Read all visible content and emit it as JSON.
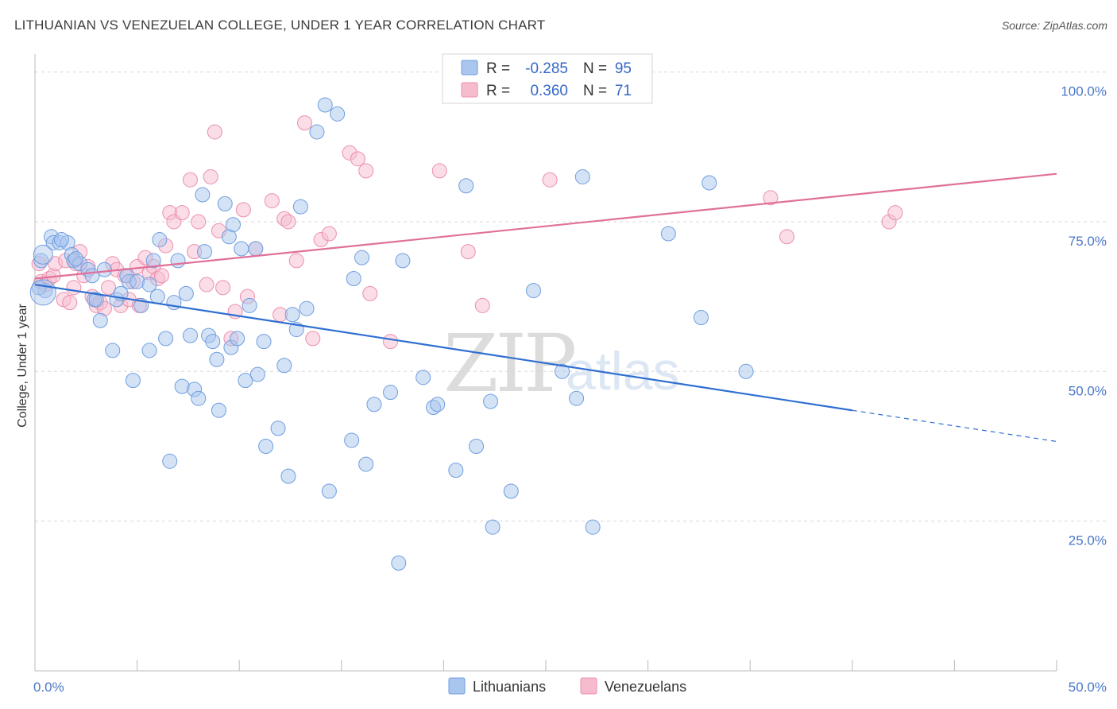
{
  "header": {
    "title": "LITHUANIAN VS VENEZUELAN COLLEGE, UNDER 1 YEAR CORRELATION CHART",
    "source": "Source: ZipAtlas.com"
  },
  "watermark": {
    "zip": "ZIP",
    "atlas": "atlas"
  },
  "legend": {
    "rows": [
      {
        "r_label": "R =",
        "r_value": "-0.285",
        "n_label": "N =",
        "n_value": "95"
      },
      {
        "r_label": "R =",
        "r_value": "0.360",
        "n_label": "N =",
        "n_value": "71"
      }
    ]
  },
  "bottom_legend": [
    {
      "label": "Lithuanians"
    },
    {
      "label": "Venezuelans"
    }
  ],
  "colors": {
    "blue_fill": "#a9c6ee",
    "blue_stroke": "#6f9ee0",
    "blue_line": "#2f6fd1",
    "pink_fill": "#f6bccd",
    "pink_stroke": "#ec8fad",
    "pink_line": "#e0709a",
    "grid": "#d8d8d8",
    "tick_text": "#4a78c8"
  },
  "chart_data": {
    "type": "scatter",
    "title": "LITHUANIAN VS VENEZUELAN COLLEGE, UNDER 1 YEAR CORRELATION CHART",
    "xlabel": "",
    "ylabel": "College, Under 1 year",
    "xlim": [
      0,
      50
    ],
    "ylim": [
      0,
      103
    ],
    "x_tick_labels": [
      "0.0%",
      "50.0%"
    ],
    "y_ticks": [
      25,
      50,
      75,
      100
    ],
    "y_tick_labels": [
      "25.0%",
      "50.0%",
      "75.0%",
      "100.0%"
    ],
    "grid": "horizontal dashed",
    "series": [
      {
        "name": "Lithuanians",
        "r": -0.285,
        "n": 95,
        "trend": {
          "x0": 0,
          "y0": 64.5,
          "x1": 40,
          "y1": 43.5,
          "dash_x1": 50,
          "dash_y1": 38.3
        },
        "points": [
          [
            0.3,
            68.5
          ],
          [
            0.5,
            63.5
          ],
          [
            0.8,
            72.5
          ],
          [
            0.9,
            71.5
          ],
          [
            1.2,
            71.5
          ],
          [
            1.6,
            71.5
          ],
          [
            1.8,
            69.5
          ],
          [
            1.9,
            68.5
          ],
          [
            2.2,
            68.0
          ],
          [
            2.6,
            67.0
          ],
          [
            2.8,
            66.0
          ],
          [
            2.9,
            62.0
          ],
          [
            3.2,
            58.5
          ],
          [
            3.4,
            67.0
          ],
          [
            3.8,
            53.5
          ],
          [
            4.0,
            62.0
          ],
          [
            4.2,
            63.0
          ],
          [
            4.5,
            66.0
          ],
          [
            4.6,
            65.0
          ],
          [
            4.8,
            48.5
          ],
          [
            5.0,
            65.0
          ],
          [
            5.2,
            61.0
          ],
          [
            5.6,
            64.5
          ],
          [
            5.6,
            53.5
          ],
          [
            5.8,
            68.5
          ],
          [
            6.0,
            62.5
          ],
          [
            6.1,
            72.0
          ],
          [
            6.4,
            55.5
          ],
          [
            6.6,
            35.0
          ],
          [
            6.8,
            61.5
          ],
          [
            7.0,
            68.5
          ],
          [
            7.2,
            47.5
          ],
          [
            7.4,
            63.0
          ],
          [
            7.6,
            56.0
          ],
          [
            7.8,
            47.0
          ],
          [
            8.0,
            45.5
          ],
          [
            8.2,
            79.5
          ],
          [
            8.3,
            70.0
          ],
          [
            8.5,
            56.0
          ],
          [
            8.7,
            55.0
          ],
          [
            8.9,
            52.0
          ],
          [
            9.0,
            43.5
          ],
          [
            9.3,
            78.0
          ],
          [
            9.5,
            72.5
          ],
          [
            9.6,
            54.0
          ],
          [
            9.7,
            74.5
          ],
          [
            9.9,
            55.5
          ],
          [
            10.1,
            70.5
          ],
          [
            10.3,
            48.5
          ],
          [
            10.5,
            61.0
          ],
          [
            10.8,
            70.5
          ],
          [
            10.9,
            49.5
          ],
          [
            11.2,
            55.0
          ],
          [
            11.3,
            37.5
          ],
          [
            11.9,
            40.5
          ],
          [
            12.2,
            51.0
          ],
          [
            12.4,
            32.5
          ],
          [
            12.6,
            59.5
          ],
          [
            12.8,
            57.0
          ],
          [
            13.0,
            77.5
          ],
          [
            13.3,
            60.5
          ],
          [
            13.8,
            90.0
          ],
          [
            14.2,
            94.5
          ],
          [
            14.4,
            30.0
          ],
          [
            14.8,
            93.0
          ],
          [
            15.5,
            38.5
          ],
          [
            15.6,
            65.5
          ],
          [
            16.0,
            69.0
          ],
          [
            16.2,
            34.5
          ],
          [
            16.6,
            44.5
          ],
          [
            17.4,
            46.5
          ],
          [
            17.8,
            18.0
          ],
          [
            18.0,
            68.5
          ],
          [
            19.0,
            49.0
          ],
          [
            19.5,
            44.0
          ],
          [
            19.7,
            44.5
          ],
          [
            20.6,
            33.5
          ],
          [
            21.1,
            81.0
          ],
          [
            21.6,
            37.5
          ],
          [
            22.3,
            45.0
          ],
          [
            22.4,
            24.0
          ],
          [
            23.3,
            30.0
          ],
          [
            24.4,
            63.5
          ],
          [
            25.8,
            50.0
          ],
          [
            26.5,
            45.5
          ],
          [
            26.8,
            82.5
          ],
          [
            27.3,
            24.0
          ],
          [
            31.0,
            73.0
          ],
          [
            32.6,
            59.0
          ],
          [
            33.0,
            81.5
          ],
          [
            34.8,
            50.0
          ],
          [
            0.2,
            64.0
          ],
          [
            1.3,
            72.0
          ],
          [
            2.0,
            68.8
          ],
          [
            3.0,
            62.0
          ]
        ]
      },
      {
        "name": "Venezuelans",
        "r": 0.36,
        "n": 71,
        "trend": {
          "x0": 0,
          "y0": 65.5,
          "x1": 50,
          "y1": 83.0
        },
        "points": [
          [
            0.2,
            68.0
          ],
          [
            0.3,
            65.0
          ],
          [
            0.5,
            64.5
          ],
          [
            0.7,
            65.5
          ],
          [
            0.9,
            66.0
          ],
          [
            1.0,
            68.0
          ],
          [
            1.4,
            62.0
          ],
          [
            1.5,
            68.5
          ],
          [
            1.7,
            61.5
          ],
          [
            1.9,
            64.0
          ],
          [
            2.0,
            68.0
          ],
          [
            2.2,
            70.0
          ],
          [
            2.4,
            66.0
          ],
          [
            2.6,
            67.5
          ],
          [
            2.8,
            62.5
          ],
          [
            3.0,
            61.0
          ],
          [
            3.2,
            61.5
          ],
          [
            3.4,
            60.5
          ],
          [
            3.6,
            64.0
          ],
          [
            3.8,
            68.0
          ],
          [
            4.0,
            67.0
          ],
          [
            4.2,
            61.0
          ],
          [
            4.4,
            66.0
          ],
          [
            4.6,
            62.0
          ],
          [
            4.8,
            65.0
          ],
          [
            5.0,
            67.5
          ],
          [
            5.1,
            61.0
          ],
          [
            5.4,
            69.0
          ],
          [
            5.6,
            66.5
          ],
          [
            5.8,
            67.5
          ],
          [
            6.0,
            65.5
          ],
          [
            6.2,
            66.0
          ],
          [
            6.4,
            71.0
          ],
          [
            6.6,
            76.5
          ],
          [
            6.8,
            75.0
          ],
          [
            7.2,
            76.5
          ],
          [
            7.6,
            82.0
          ],
          [
            7.8,
            70.0
          ],
          [
            8.0,
            75.0
          ],
          [
            8.4,
            64.5
          ],
          [
            8.6,
            82.5
          ],
          [
            8.8,
            90.0
          ],
          [
            9.0,
            73.5
          ],
          [
            9.2,
            64.0
          ],
          [
            9.6,
            55.5
          ],
          [
            9.8,
            60.0
          ],
          [
            10.2,
            77.0
          ],
          [
            10.4,
            62.5
          ],
          [
            10.8,
            70.5
          ],
          [
            11.6,
            78.5
          ],
          [
            12.0,
            59.5
          ],
          [
            12.2,
            75.5
          ],
          [
            12.4,
            75.0
          ],
          [
            12.8,
            68.5
          ],
          [
            13.2,
            91.5
          ],
          [
            13.6,
            55.5
          ],
          [
            14.0,
            72.0
          ],
          [
            14.4,
            73.0
          ],
          [
            15.4,
            86.5
          ],
          [
            15.8,
            85.5
          ],
          [
            16.2,
            83.5
          ],
          [
            16.4,
            63.0
          ],
          [
            17.4,
            55.0
          ],
          [
            19.8,
            83.5
          ],
          [
            21.2,
            70.0
          ],
          [
            21.9,
            61.0
          ],
          [
            25.2,
            82.0
          ],
          [
            36.0,
            79.0
          ],
          [
            36.8,
            72.5
          ],
          [
            41.8,
            75.0
          ],
          [
            42.1,
            76.5
          ]
        ]
      }
    ]
  }
}
